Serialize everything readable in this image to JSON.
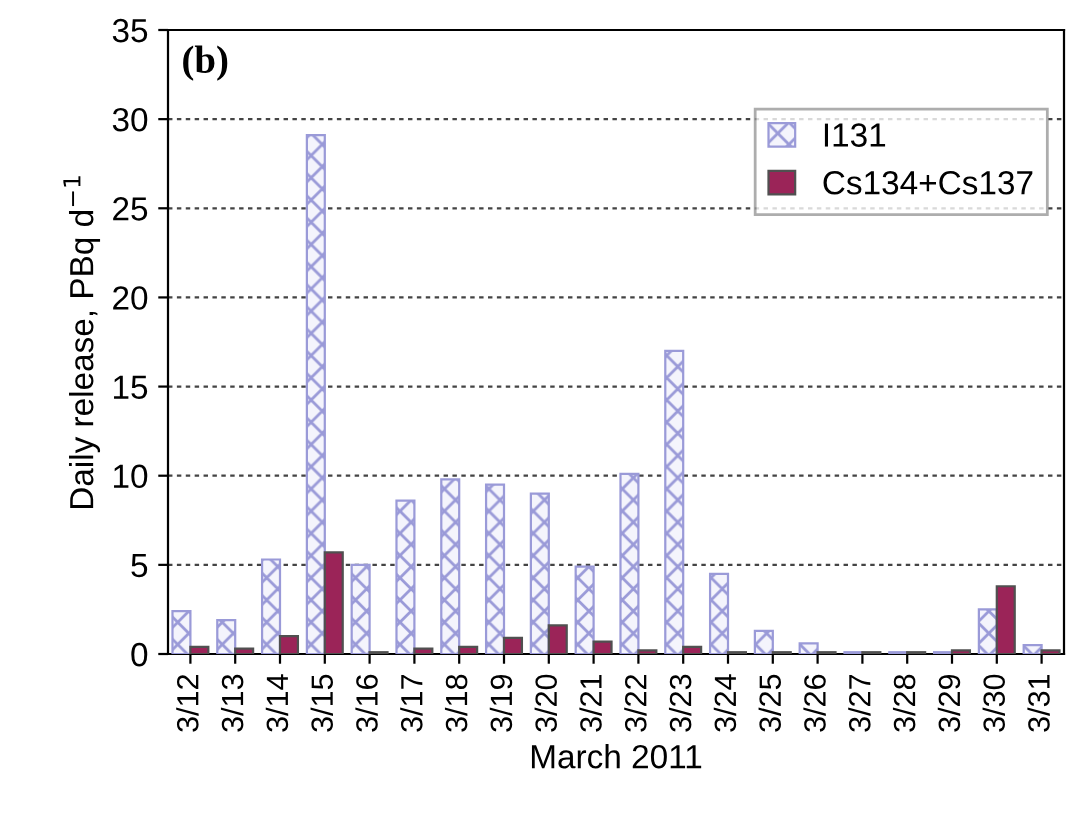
{
  "chart_data": {
    "type": "bar",
    "xlabel": "March 2011",
    "ylabel": "Daily release, PBq d$^{−1}$",
    "annotations": [
      "(b)"
    ],
    "categories": [
      "3/12",
      "3/13",
      "3/14",
      "3/15",
      "3/16",
      "3/17",
      "3/18",
      "3/19",
      "3/20",
      "3/21",
      "3/22",
      "3/23",
      "3/24",
      "3/25",
      "3/26",
      "3/27",
      "3/28",
      "3/29",
      "3/30",
      "3/31"
    ],
    "series": [
      {
        "name": "I131",
        "color": "#9a9ad8",
        "values": [
          2.4,
          1.9,
          5.3,
          29.1,
          5.0,
          8.6,
          9.8,
          9.5,
          9.0,
          4.9,
          10.1,
          17.0,
          4.5,
          1.3,
          0.6,
          0.1,
          0.1,
          0.1,
          2.5,
          0.5
        ]
      },
      {
        "name": "Cs134+Cs137",
        "color": "#9b2458",
        "values": [
          0.4,
          0.3,
          1.0,
          5.7,
          0.1,
          0.3,
          0.4,
          0.9,
          1.6,
          0.7,
          0.2,
          0.4,
          0.1,
          0.1,
          0.1,
          0.1,
          0.1,
          0.2,
          3.8,
          0.2
        ]
      }
    ],
    "ylim": [
      0,
      35
    ],
    "yticks": [
      0,
      5,
      10,
      15,
      20,
      25,
      30,
      35
    ],
    "grid": "y",
    "legend": "top right"
  }
}
